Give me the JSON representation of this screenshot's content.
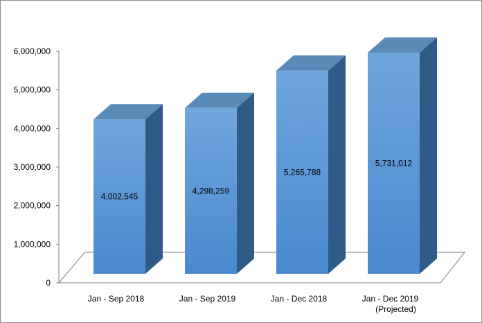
{
  "chart_data": {
    "type": "bar",
    "style": "3d-column",
    "categories": [
      "Jan - Sep 2018",
      "Jan - Sep 2019",
      "Jan - Dec 2018",
      "Jan - Dec 2019|(Projected)"
    ],
    "values": [
      4002545,
      4298259,
      5265788,
      5731012
    ],
    "data_labels": [
      "4,002,545",
      "4,298,259",
      "5,265,788",
      "5,731,012"
    ],
    "ylim": [
      0,
      6000000
    ],
    "yticks": [
      0,
      1000000,
      2000000,
      3000000,
      4000000,
      5000000,
      6000000
    ],
    "ytick_labels": [
      "0",
      "1,000,000",
      "2,000,000",
      "3,000,000",
      "4,000,000",
      "5,000,000",
      "6,000,000"
    ],
    "title": "",
    "xlabel": "",
    "ylabel": "",
    "grid": false,
    "legend": "none",
    "colors": {
      "front_top": "#6fa6dc",
      "front_bottom": "#4a89cf",
      "side": "#2f5c86",
      "top": "#5a8ab8",
      "floor_stroke": "#7f7f7f",
      "axis": "#7f7f7f"
    }
  }
}
